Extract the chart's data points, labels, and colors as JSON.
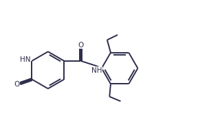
{
  "bg_color": "#ffffff",
  "line_color": "#2c2c4a",
  "line_width": 1.4,
  "font_size": 7.5,
  "fig_width": 2.88,
  "fig_height": 1.91,
  "dpi": 100,
  "xlim": [
    0.0,
    8.5
  ],
  "ylim": [
    0.5,
    5.5
  ]
}
